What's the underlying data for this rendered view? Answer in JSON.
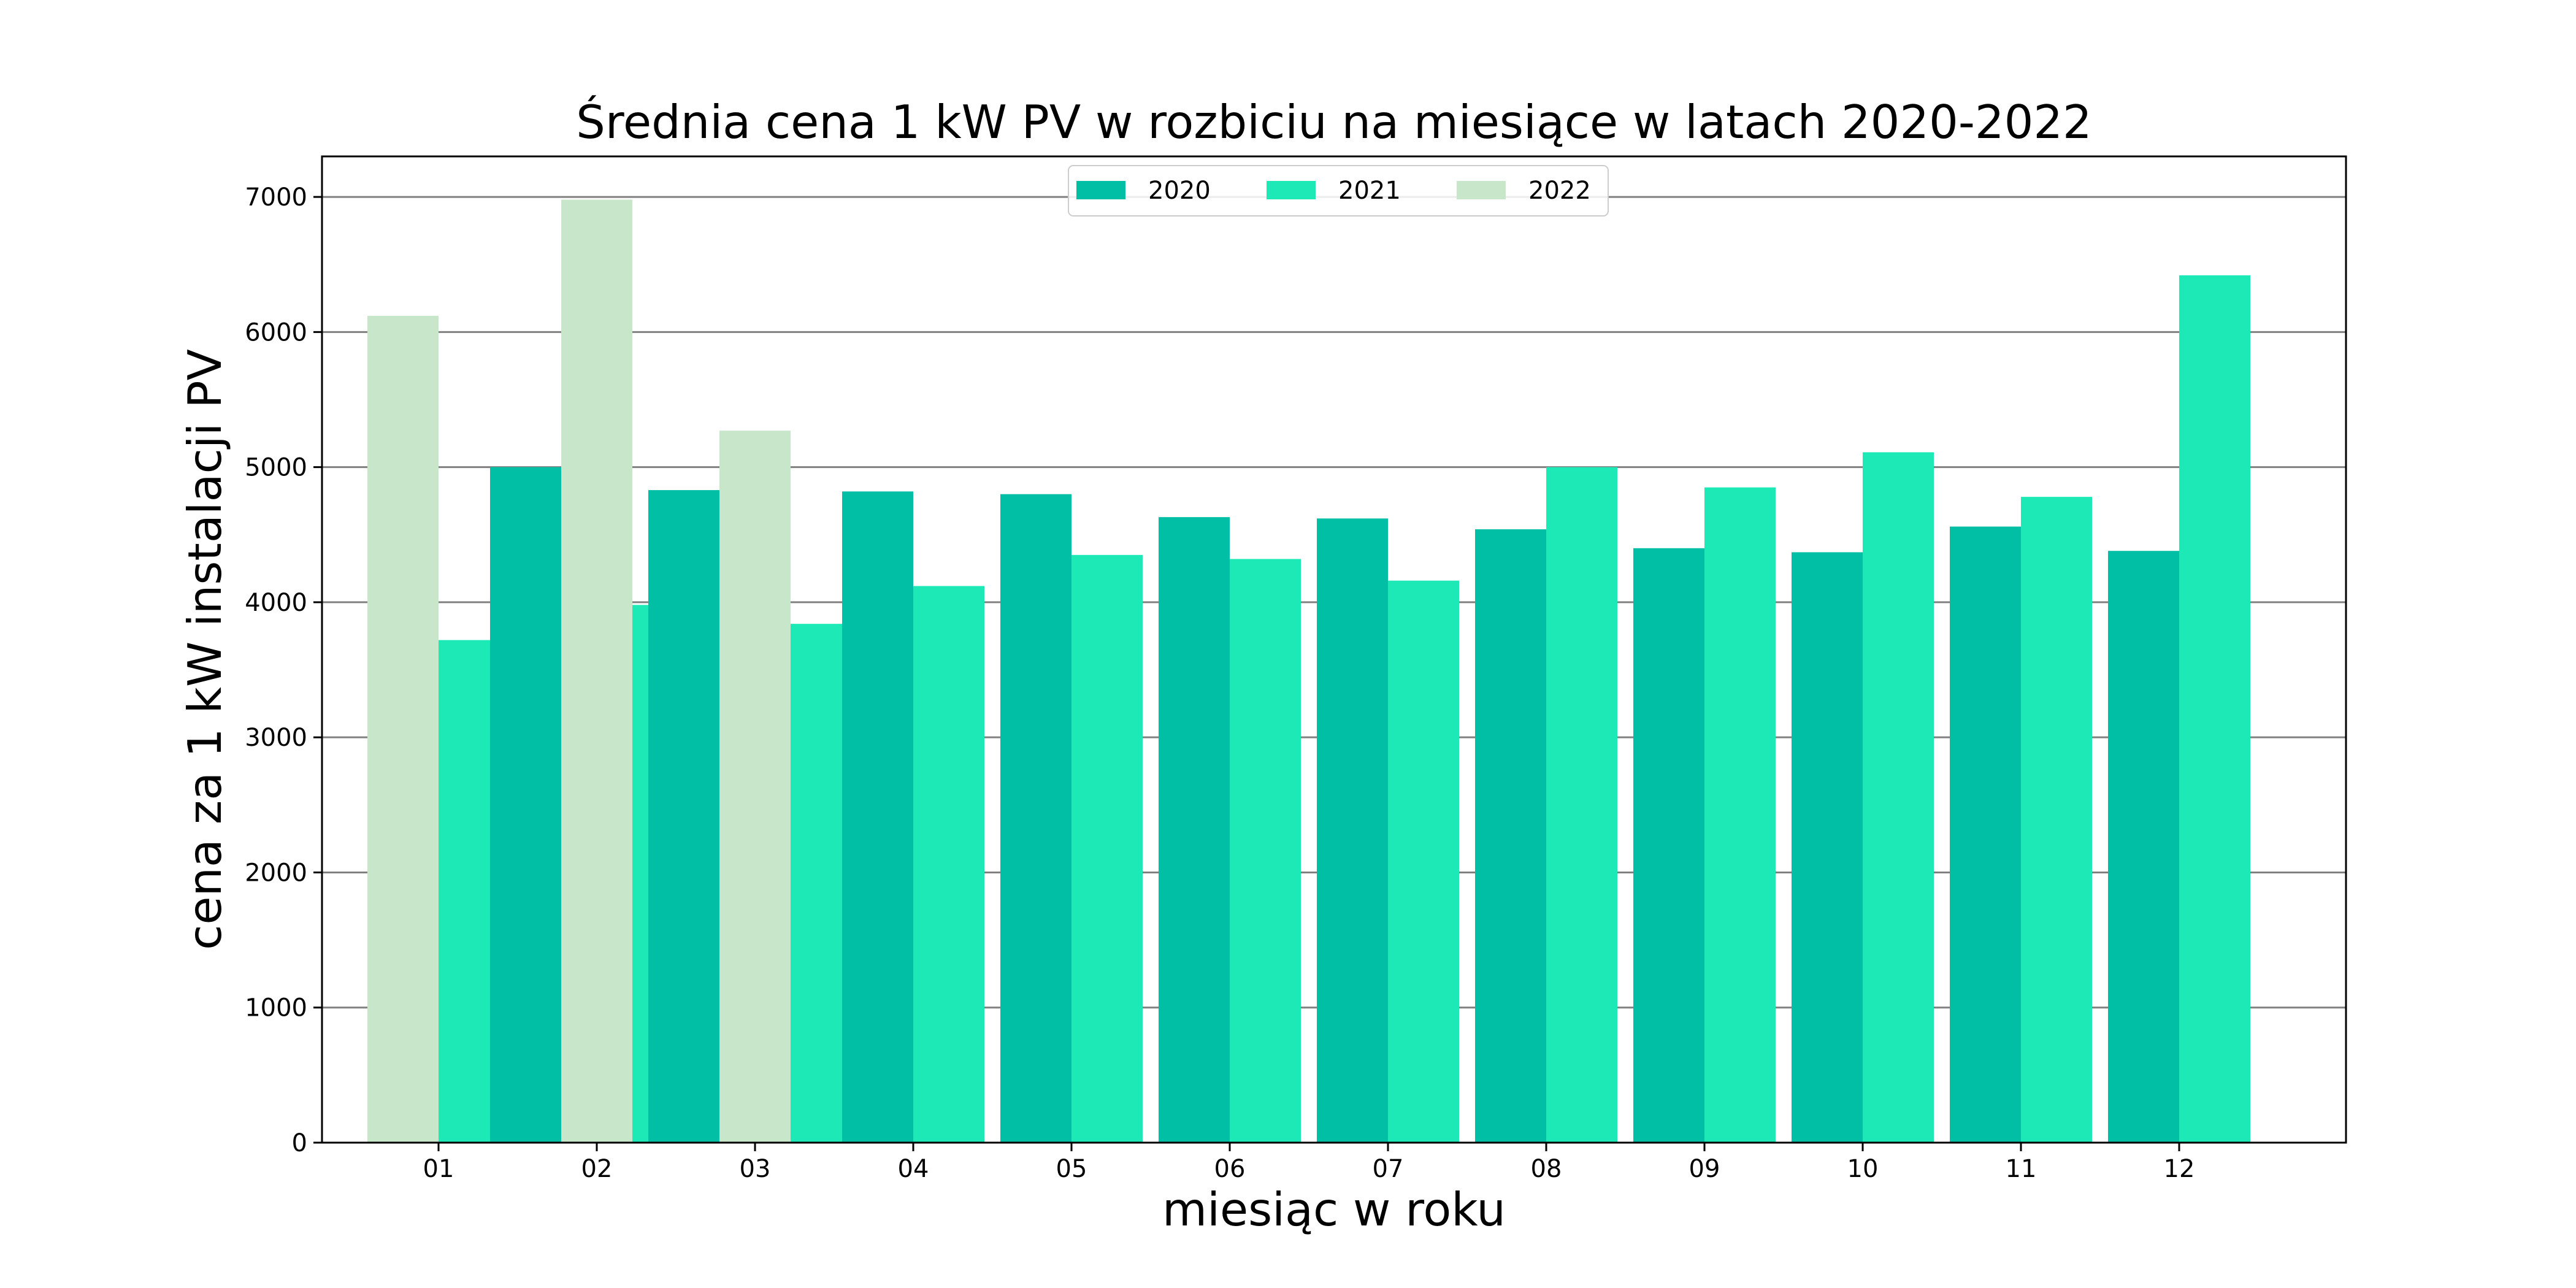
{
  "chart_data": {
    "type": "bar",
    "title": "Średnia cena 1 kW PV w rozbiciu na miesiące w latach 2020-2022",
    "xlabel": "miesiąc w roku",
    "ylabel": "cena za 1 kW instalacji PV",
    "categories": [
      "01",
      "02",
      "03",
      "04",
      "05",
      "06",
      "07",
      "08",
      "09",
      "10",
      "11",
      "12"
    ],
    "ylim": [
      0,
      7300
    ],
    "yticks": [
      0,
      1000,
      2000,
      3000,
      4000,
      5000,
      6000,
      7000
    ],
    "grid": "horizontal",
    "legend_position": "top-center",
    "series": [
      {
        "name": "2020",
        "color": "#00bfa5",
        "values": [
          null,
          5000,
          4830,
          4820,
          4800,
          4630,
          4620,
          4540,
          4400,
          4370,
          4560,
          4380
        ]
      },
      {
        "name": "2021",
        "color": "#1de9b6",
        "values": [
          3720,
          3980,
          3840,
          4120,
          4350,
          4320,
          4160,
          5000,
          4850,
          5110,
          4780,
          6420
        ]
      },
      {
        "name": "2022",
        "color": "#c8e6c9",
        "values": [
          6120,
          6980,
          5270,
          null,
          null,
          null,
          null,
          null,
          null,
          null,
          null,
          null
        ]
      }
    ]
  }
}
